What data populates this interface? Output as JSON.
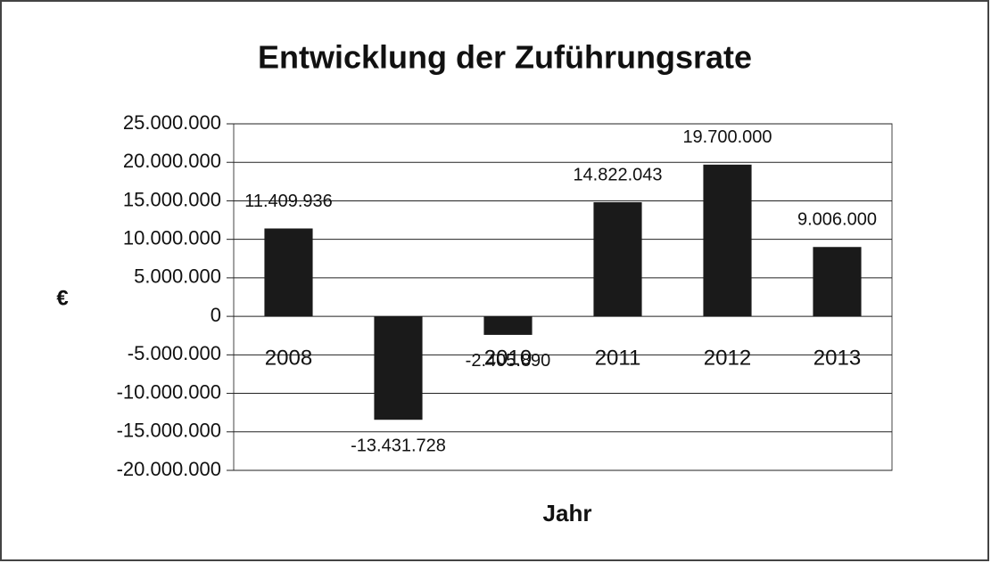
{
  "chart_data": {
    "type": "bar",
    "title": "Entwicklung der Zuführungsrate",
    "x_label": "Jahr",
    "y_label": "€",
    "categories": [
      "2008",
      "2009",
      "2010",
      "2011",
      "2012",
      "2013"
    ],
    "values": [
      11409936,
      -13431728,
      -2405890,
      14822043,
      19700000,
      9006000
    ],
    "value_labels": [
      "11.409.936",
      "-13.431.728",
      "-2.405.890",
      "14.822.043",
      "19.700.000",
      "9.006.000"
    ],
    "color": "#1a1a1a",
    "ylim": [
      -20000000,
      25000000
    ],
    "yticks": [
      {
        "value": -20000000,
        "label": "-20.000.000"
      },
      {
        "value": -15000000,
        "label": "-15.000.000"
      },
      {
        "value": -10000000,
        "label": "-10.000.000"
      },
      {
        "value": -5000000,
        "label": "-5.000.000"
      },
      0,
      {
        "value": 5000000,
        "label": "5.000.000"
      },
      {
        "value": 10000000,
        "label": "10.000.000"
      },
      {
        "value": 15000000,
        "label": "15.000.000"
      },
      {
        "value": 20000000,
        "label": "20.000.000"
      },
      {
        "value": 25000000,
        "label": "25.000.000"
      }
    ],
    "grid": true
  }
}
